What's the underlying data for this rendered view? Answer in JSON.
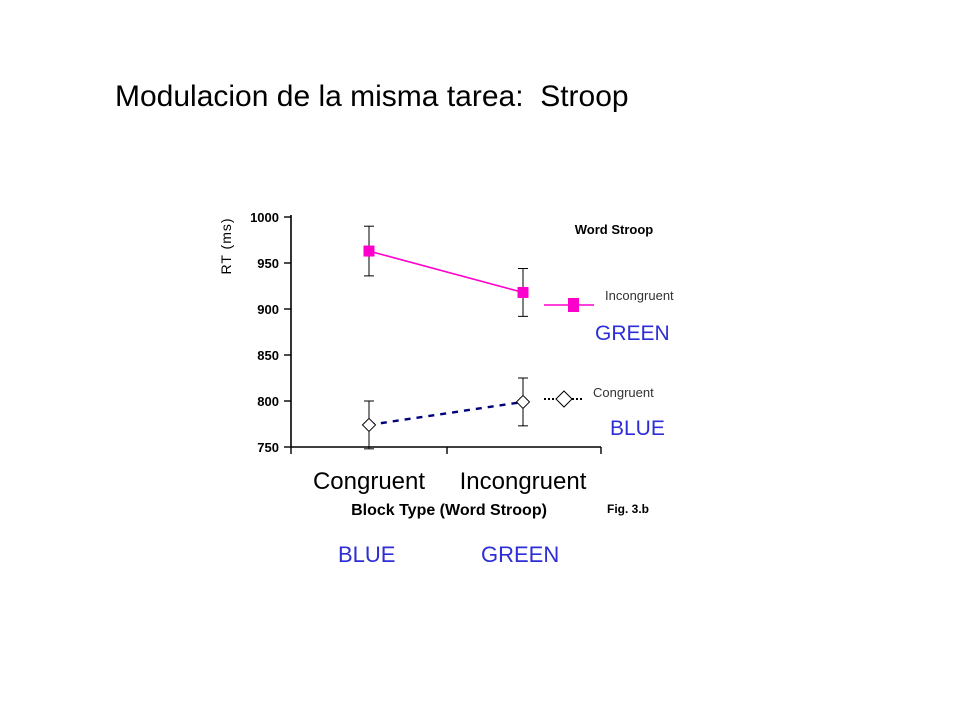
{
  "slide": {
    "title": "Modulacion de la misma tarea:  Stroop",
    "color_words": [
      "BLUE",
      "GREEN"
    ]
  },
  "chart_data": {
    "type": "line",
    "title": "Word Stroop",
    "xlabel": "Block Type (Word Stroop)",
    "ylabel": "RT (ms)",
    "categories": [
      "Congruent",
      "Incongruent"
    ],
    "ylim": [
      750,
      1000
    ],
    "yticks": [
      750,
      800,
      850,
      900,
      950,
      1000
    ],
    "grid": false,
    "legend_position": "right",
    "figure_label": "Fig. 3.b",
    "series": [
      {
        "name": "Incongruent",
        "legend_word": "GREEN",
        "values": [
          963,
          918
        ],
        "error": [
          27,
          26
        ],
        "color": "#ff00cc",
        "marker": "square",
        "line_style": "solid"
      },
      {
        "name": "Congruent",
        "legend_word": "BLUE",
        "values": [
          774,
          799
        ],
        "error": [
          26,
          26
        ],
        "color": "#00007f",
        "marker": "diamond",
        "line_style": "dashed"
      }
    ]
  }
}
